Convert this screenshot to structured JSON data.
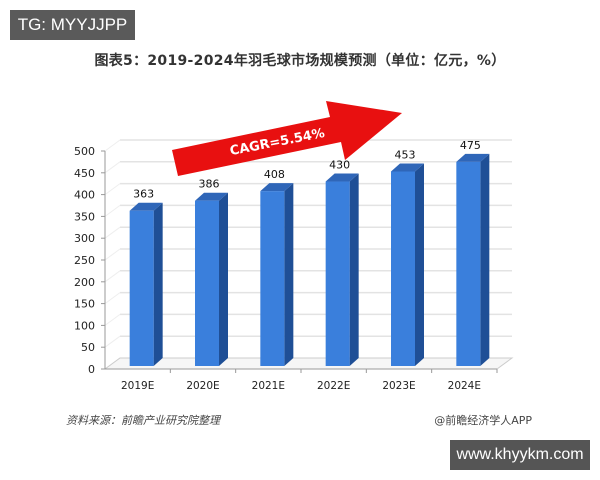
{
  "watermark_top": "TG: MYYJJPP",
  "watermark_bottom": "www.khyykm.com",
  "title": "图表5：2019-2024年羽毛球市场规模预测（单位：亿元，%）",
  "source": "资料来源：前瞻产业研究院整理",
  "credit": "@前瞻经济学人APP",
  "annotation": "CAGR=5.54%",
  "colors": {
    "bar_front": "#3a7fdc",
    "bar_side": "#1f4f96",
    "bar_top": "#2f66b8",
    "arrow": "#e81010",
    "grid": "#e3e3e3"
  },
  "chart_data": {
    "type": "bar",
    "title": "图表5：2019-2024年羽毛球市场规模预测（单位：亿元，%）",
    "categories": [
      "2019E",
      "2020E",
      "2021E",
      "2022E",
      "2023E",
      "2024E"
    ],
    "values": [
      363,
      386,
      408,
      430,
      453,
      475
    ],
    "xlabel": "",
    "ylabel": "亿元",
    "ylim": [
      0,
      500
    ],
    "yticks": [
      0,
      50,
      100,
      150,
      200,
      250,
      300,
      350,
      400,
      450,
      500
    ],
    "grid": true,
    "annotations": [
      "CAGR=5.54%"
    ],
    "data_labels": [
      "363",
      "386",
      "408",
      "430",
      "453",
      "475"
    ]
  }
}
